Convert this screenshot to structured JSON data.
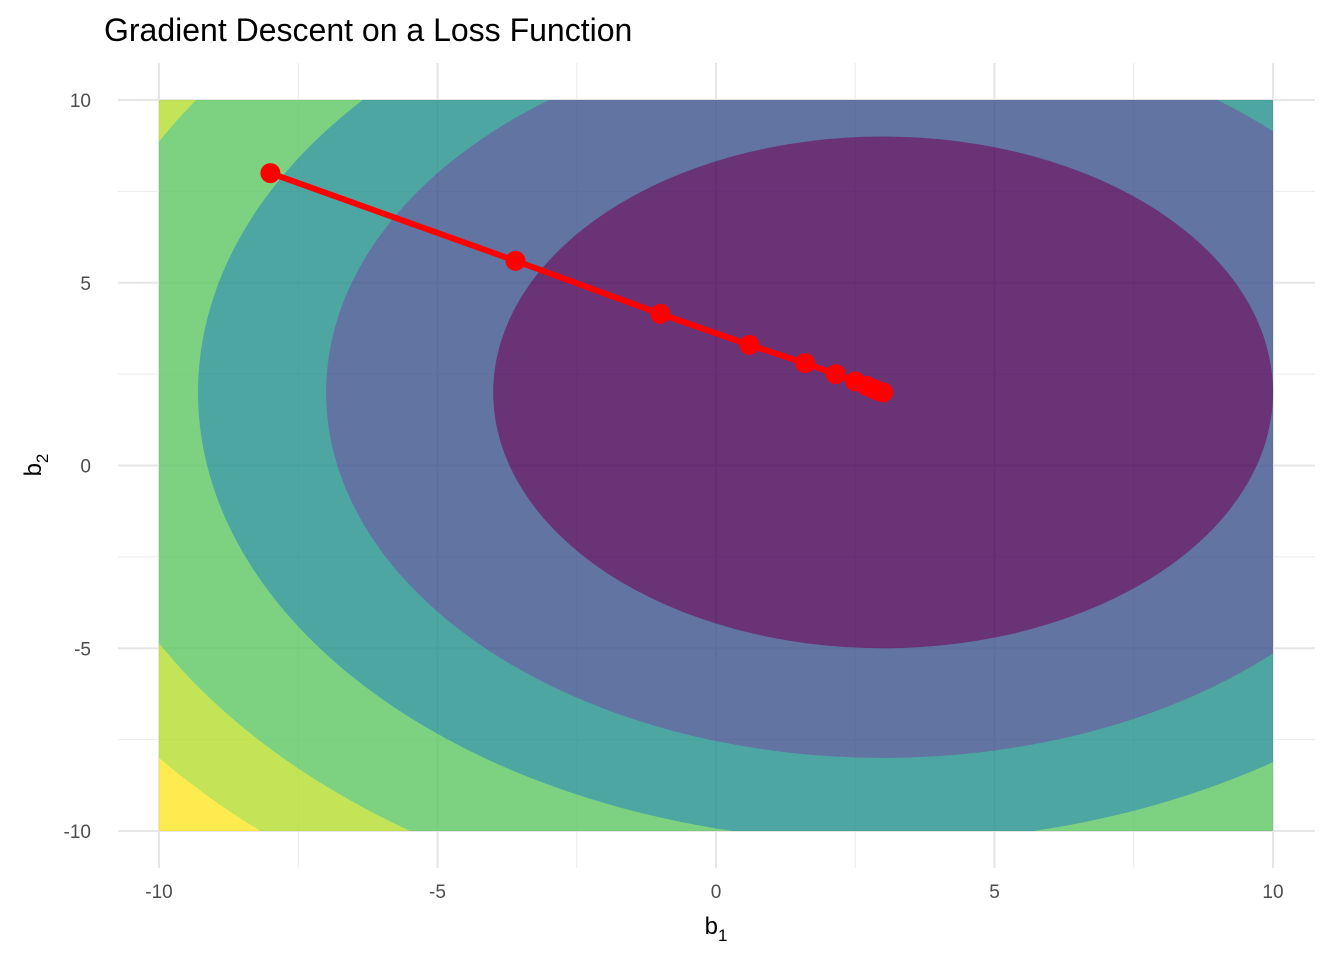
{
  "chart_data": {
    "type": "contour",
    "title": "Gradient Descent on a Loss Function",
    "xlabel": {
      "base": "b",
      "sub": "1"
    },
    "ylabel": {
      "base": "b",
      "sub": "2"
    },
    "xlim": [
      -10,
      10
    ],
    "ylim": [
      -10,
      10
    ],
    "x_ticks": [
      -10,
      -5,
      0,
      5,
      10
    ],
    "y_ticks": [
      -10,
      -5,
      0,
      5,
      10
    ],
    "x_tick_labels": [
      "-10",
      "-5",
      "0",
      "5",
      "10"
    ],
    "y_tick_labels": [
      "-10",
      "-5",
      "0",
      "5",
      "10"
    ],
    "grid": true,
    "contour": {
      "center": [
        3,
        2
      ],
      "x_scale": 7,
      "y_scale": 7,
      "band_edges": [
        1,
        2,
        3,
        4,
        5,
        6
      ],
      "band_colors": [
        "#440154",
        "#3b528b",
        "#21908c",
        "#5dc863",
        "#b4de2c",
        "#fde725"
      ],
      "levels": [
        {
          "b1_half_width": 7.0,
          "b2_half_height": 7.0
        },
        {
          "b1_half_width": 10.0,
          "b2_half_height": 10.0
        },
        {
          "b1_half_width": 12.3,
          "b2_half_height": 12.3
        },
        {
          "b1_half_width": 14.7,
          "b2_half_height": 14.7
        },
        {
          "b1_half_width": 16.4,
          "b2_half_height": 16.4
        }
      ],
      "opacity": 0.8
    },
    "series": [
      {
        "color": "#ff0000",
        "points": [
          {
            "x": -8.0,
            "y": 8.0
          },
          {
            "x": -3.6,
            "y": 5.6
          },
          {
            "x": -1.0,
            "y": 4.15
          },
          {
            "x": 0.6,
            "y": 3.3
          },
          {
            "x": 1.6,
            "y": 2.8
          },
          {
            "x": 2.15,
            "y": 2.5
          },
          {
            "x": 2.5,
            "y": 2.3
          },
          {
            "x": 2.7,
            "y": 2.18
          },
          {
            "x": 2.82,
            "y": 2.1
          },
          {
            "x": 2.9,
            "y": 2.05
          },
          {
            "x": 2.95,
            "y": 2.02
          },
          {
            "x": 3.0,
            "y": 2.0
          }
        ]
      }
    ]
  }
}
